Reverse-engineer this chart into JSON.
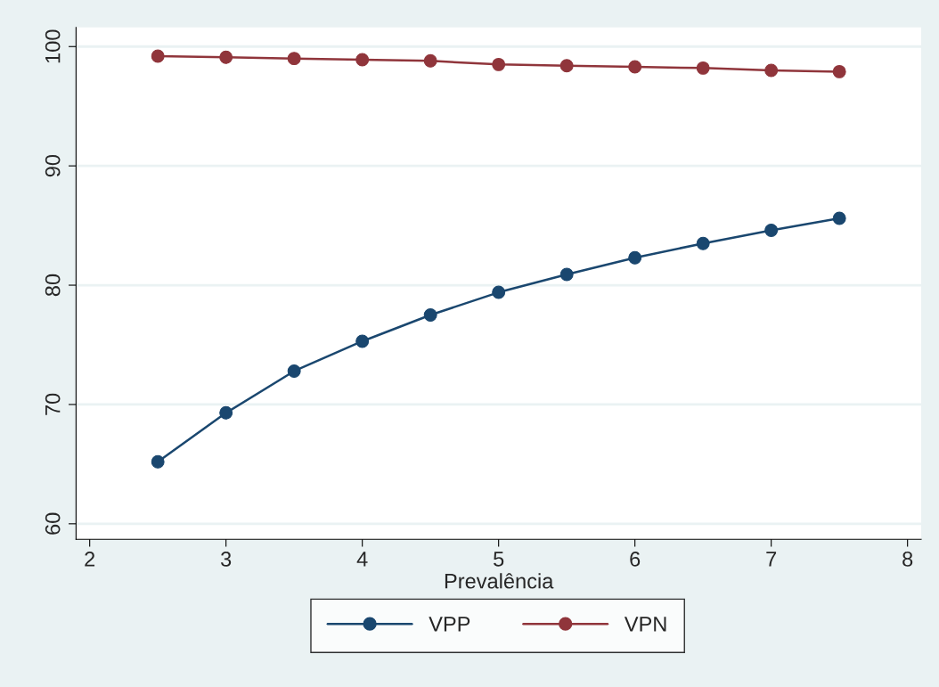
{
  "chart_data": {
    "type": "line",
    "xlabel": "Prevalência",
    "x": [
      2.5,
      3,
      3.5,
      4,
      4.5,
      5,
      5.5,
      6,
      6.5,
      7,
      7.5
    ],
    "series": [
      {
        "name": "VPP",
        "color": "#1a476f",
        "values": [
          65.2,
          69.3,
          72.8,
          75.3,
          77.5,
          79.4,
          80.9,
          82.3,
          83.5,
          84.6,
          85.6
        ]
      },
      {
        "name": "VPN",
        "color": "#90353b",
        "values": [
          99.2,
          99.1,
          99.0,
          98.9,
          98.8,
          98.5,
          98.4,
          98.3,
          98.2,
          98.0,
          97.9
        ]
      }
    ],
    "xlim": [
      1.9,
      8.1
    ],
    "xticks": [
      2,
      3,
      4,
      5,
      6,
      7,
      8
    ],
    "ylim": [
      58.7,
      101.6
    ],
    "yticks": [
      60,
      70,
      80,
      90,
      100
    ],
    "grid": "y",
    "legend": "bottom",
    "marker": "circle",
    "line_style": "solid"
  }
}
